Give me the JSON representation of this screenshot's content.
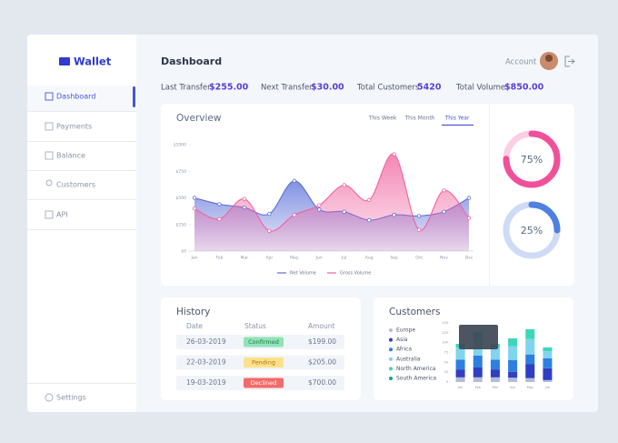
{
  "sidebar": {
    "logo": "Wallet",
    "nav": [
      "Dashboard",
      "Payments",
      "Balance",
      "Customers",
      "API"
    ],
    "settings": "Settings"
  },
  "header": {
    "title": "Dashboard",
    "account": "Account"
  },
  "stats": [
    {
      "label": "Last Transfer",
      "value": "$255.00"
    },
    {
      "label": "Next Transfer",
      "value": "$30.00"
    },
    {
      "label": "Total Customers",
      "value": "5420"
    },
    {
      "label": "Total Volume",
      "value": "$850.00"
    }
  ],
  "overview": {
    "tabs": [
      "This Week",
      "This Month",
      "This Year"
    ]
  },
  "history": {
    "title": "History",
    "columns": [
      "Date",
      "Status",
      "Amount"
    ],
    "rows": [
      [
        "26-03-2019",
        "Confirmed",
        "$199.00"
      ],
      [
        "22-03-2019",
        "Pending",
        "$205.00"
      ],
      [
        "19-03-2019",
        "Declined",
        "$700.00"
      ]
    ]
  },
  "chart_data": [
    {
      "type": "area",
      "title": "Overview",
      "categories": [
        "Jan",
        "Feb",
        "Mar",
        "Apr",
        "May",
        "Jun",
        "Jul",
        "Aug",
        "Sep",
        "Oct",
        "Nov",
        "Dec"
      ],
      "series": [
        {
          "name": "Net Volume",
          "color": "#5b6fd9",
          "values": [
            500,
            440,
            410,
            350,
            660,
            390,
            370,
            290,
            340,
            330,
            370,
            500
          ]
        },
        {
          "name": "Gross Volume",
          "color": "#f0629f",
          "values": [
            400,
            300,
            490,
            190,
            340,
            430,
            620,
            480,
            910,
            200,
            570,
            310
          ]
        }
      ],
      "ylim": [
        0,
        1000
      ],
      "yticks": [
        {
          "value": 0,
          "label": "$0"
        },
        {
          "value": 250,
          "label": "$250"
        },
        {
          "value": 500,
          "label": "$500"
        },
        {
          "value": 750,
          "label": "$750"
        },
        {
          "value": 1000,
          "label": "$1000"
        }
      ]
    },
    {
      "type": "donut",
      "values": [
        75
      ],
      "value_labels": [
        "75%"
      ],
      "color": "#f0509a"
    },
    {
      "type": "donut",
      "values": [
        25
      ],
      "value_labels": [
        "25%"
      ],
      "color": "#4f7fe0"
    },
    {
      "type": "stacked_bar",
      "title": "Customers",
      "categories": [
        "Jan",
        "Feb",
        "Mar",
        "Apr",
        "May",
        "Jun"
      ],
      "series": [
        {
          "name": "Europe",
          "color": "#b4bdd8",
          "values": [
            12,
            12,
            12,
            11,
            10,
            5
          ]
        },
        {
          "name": "Asia",
          "color": "#2f3ec2",
          "values": [
            20,
            25,
            20,
            15,
            35,
            30
          ]
        },
        {
          "name": "Africa",
          "color": "#2d7fe0",
          "values": [
            25,
            30,
            25,
            30,
            25,
            25
          ]
        },
        {
          "name": "Australia",
          "color": "#7fd4ee",
          "values": [
            30,
            40,
            30,
            35,
            39,
            18
          ]
        },
        {
          "name": "North America",
          "color": "#3ed6b8",
          "values": [
            10,
            20,
            10,
            20,
            25,
            10
          ]
        },
        {
          "name": "South America",
          "color": "#17a085",
          "values": [
            0,
            0,
            0,
            0,
            0,
            0
          ]
        }
      ],
      "ylim": [
        0,
        150
      ],
      "yticks": [
        0,
        25,
        50,
        75,
        100,
        125,
        150
      ]
    }
  ]
}
